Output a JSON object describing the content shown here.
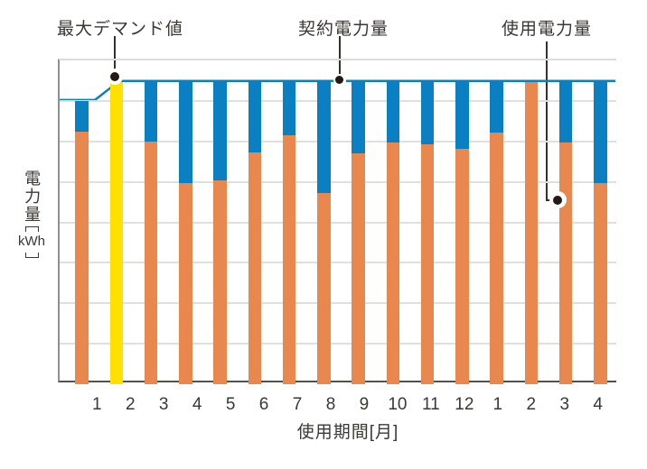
{
  "chart_data": {
    "type": "bar",
    "title": "",
    "xlabel": "使用期間[月]",
    "ylabel": "電力量",
    "ylabel_unit": "kWh",
    "categories": [
      "1",
      "2",
      "3",
      "4",
      "5",
      "6",
      "7",
      "8",
      "9",
      "10",
      "11",
      "12",
      "1",
      "2",
      "3",
      "4"
    ],
    "y_scale_note": "no numeric y-axis labels shown; values are in gridline units",
    "ylim": [
      0,
      8
    ],
    "grid_divisions": 8,
    "legend_position": "none",
    "annotations": {
      "max_demand": "最大デマンド値",
      "contract": "契約電力量",
      "usage": "使用電力量"
    },
    "contract_line": {
      "initial_level": 7.0,
      "raised_level": 7.47,
      "rise_at_category_index": 1
    },
    "bars": [
      {
        "month": "1",
        "kind": "normal",
        "used": 6.24,
        "top": 7.0
      },
      {
        "month": "2",
        "kind": "max_demand",
        "used": 7.47,
        "top": 7.47
      },
      {
        "month": "3",
        "kind": "normal",
        "used": 6.0,
        "top": 7.47
      },
      {
        "month": "4",
        "kind": "normal",
        "used": 4.97,
        "top": 7.47
      },
      {
        "month": "5",
        "kind": "normal",
        "used": 5.03,
        "top": 7.47
      },
      {
        "month": "6",
        "kind": "normal",
        "used": 5.72,
        "top": 7.47
      },
      {
        "month": "7",
        "kind": "normal",
        "used": 6.14,
        "top": 7.47
      },
      {
        "month": "8",
        "kind": "normal",
        "used": 4.73,
        "top": 7.47
      },
      {
        "month": "9",
        "kind": "normal",
        "used": 5.71,
        "top": 7.47
      },
      {
        "month": "10",
        "kind": "normal",
        "used": 5.98,
        "top": 7.47
      },
      {
        "month": "11",
        "kind": "normal",
        "used": 5.92,
        "top": 7.47
      },
      {
        "month": "12",
        "kind": "normal",
        "used": 5.82,
        "top": 7.47
      },
      {
        "month": "1",
        "kind": "normal",
        "used": 6.22,
        "top": 7.47
      },
      {
        "month": "2",
        "kind": "normal",
        "used": 7.47,
        "top": 7.47
      },
      {
        "month": "3",
        "kind": "normal",
        "used": 5.98,
        "top": 7.47
      },
      {
        "month": "4",
        "kind": "normal",
        "used": 4.96,
        "top": 7.47
      }
    ],
    "colors": {
      "used_bar": "#e8884e",
      "contract_bar": "#0a80c2",
      "max_demand_bar": "#ffe100",
      "contract_line": "#0a80c2",
      "gridline": "#e2e0de",
      "axis_left": "#8f8f8f",
      "axis_bottom": "#55504c",
      "text": "#3b3734",
      "leader": "#33302d",
      "dot": "#211a15"
    }
  }
}
